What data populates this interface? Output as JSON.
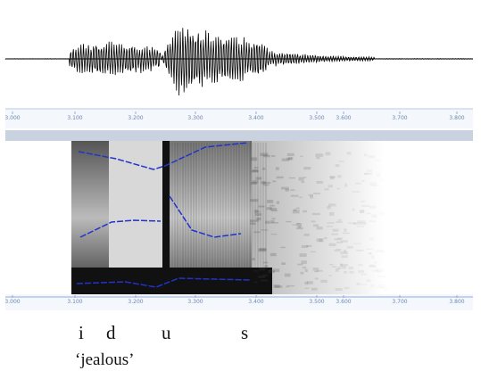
{
  "waveform_axis": {
    "ticks": [
      "3.000",
      "3.100",
      "3.200",
      "3.300",
      "3.400",
      "3.500",
      "3.600",
      "3.700",
      "3.800"
    ]
  },
  "spectrogram_axis": {
    "ticks": [
      "3.000",
      "3.100",
      "3.200",
      "3.300",
      "3.400",
      "3.500",
      "3.600",
      "3.700",
      "3.800"
    ]
  },
  "segments": [
    "i",
    "d",
    "u",
    "s"
  ],
  "gloss": "‘jealous’"
}
